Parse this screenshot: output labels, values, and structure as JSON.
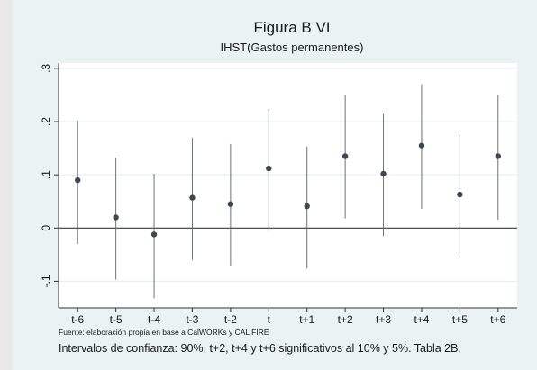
{
  "chart_data": {
    "type": "scatter",
    "title": "Figura B VI",
    "subtitle": "IHST(Gastos permanentes)",
    "categories": [
      "t-6",
      "t-5",
      "t-4",
      "t-3",
      "t-2",
      "t",
      "t+1",
      "t+2",
      "t+3",
      "t+4",
      "t+5",
      "t+6"
    ],
    "series": [
      {
        "values": [
          0.09,
          0.02,
          -0.012,
          0.057,
          0.045,
          0.112,
          0.041,
          0.135,
          0.102,
          0.155,
          0.063,
          0.135
        ],
        "lower": [
          -0.03,
          -0.097,
          -0.132,
          -0.06,
          -0.072,
          -0.005,
          -0.076,
          0.018,
          -0.015,
          0.036,
          -0.056,
          0.016
        ],
        "upper": [
          0.202,
          0.132,
          0.102,
          0.17,
          0.158,
          0.224,
          0.153,
          0.25,
          0.214,
          0.27,
          0.176,
          0.25
        ]
      }
    ],
    "yticks": [
      ".3",
      ".2",
      ".1",
      "0",
      "-.1"
    ],
    "ytick_values": [
      0.3,
      0.2,
      0.1,
      0,
      -0.1
    ],
    "ylim": [
      -0.15,
      0.31
    ],
    "grid": true,
    "reference_line_y": 0,
    "note_small": "Fuente: elaboración propia en base a CalWORKs y CAL FIRE",
    "note": "Intervalos de confianza: 90%. t+2, t+4 y t+6 significativos al 10% y 5%. Tabla 2B.",
    "colors": {
      "panel_bg": "#eaf2f3",
      "plot_bg": "#ffffff",
      "marker": "#3d4852",
      "ci_line": "#6b7278",
      "grid": "#e5ebee",
      "zero_line": "#3a3a3a"
    }
  }
}
